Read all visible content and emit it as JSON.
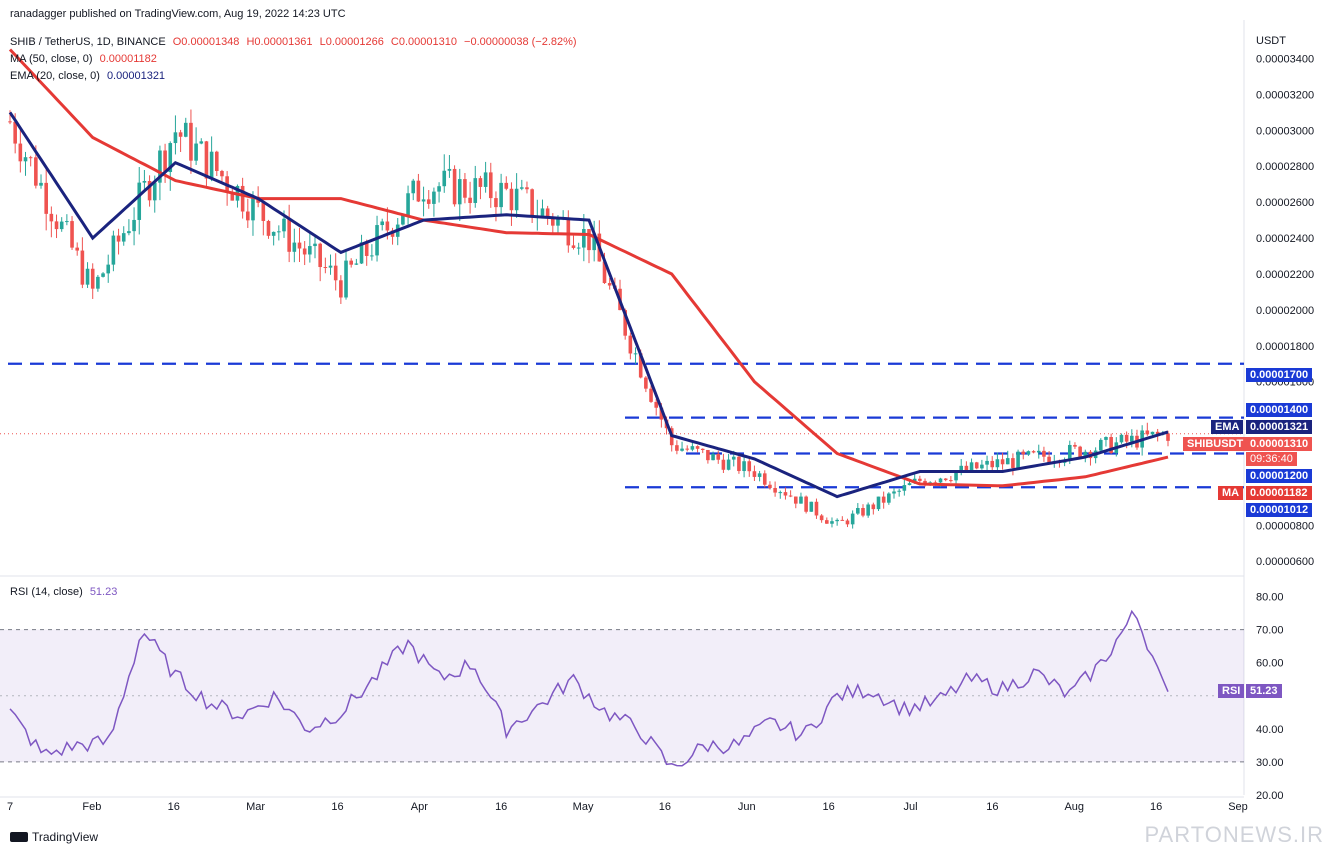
{
  "publisher": "ranadagger published on TradingView.com, Aug 19, 2022 14:23 UTC",
  "header": {
    "symbol": "SHIB / TetherUS, 1D, BINANCE",
    "open": "O0.00001348",
    "high": "H0.00001361",
    "low": "L0.00001266",
    "close": "C0.00001310",
    "change": "−0.00000038 (−2.82%)",
    "ma_label": "MA (50, close, 0)",
    "ma_value": "0.00001182",
    "ema_label": "EMA (20, close, 0)",
    "ema_value": "0.00001321"
  },
  "rsi_header": {
    "label": "RSI (14, close)",
    "value": "51.23"
  },
  "price_axis": {
    "unit": "USDT",
    "ticks": [
      "0.00003400",
      "0.00003200",
      "0.00003000",
      "0.00002800",
      "0.00002600",
      "0.00002400",
      "0.00002200",
      "0.00002000",
      "0.00001800",
      "0.00001600",
      "0.00000800",
      "0.00000600"
    ]
  },
  "rsi_axis": {
    "ticks": [
      "80.00",
      "70.00",
      "60.00",
      "40.00",
      "30.00",
      "20.00"
    ]
  },
  "time_axis": {
    "labels": [
      "7",
      "Feb",
      "16",
      "Mar",
      "16",
      "Apr",
      "16",
      "May",
      "16",
      "Jun",
      "16",
      "Jul",
      "16",
      "Aug",
      "16",
      "Sep"
    ]
  },
  "level_tags": {
    "r1700": "0.00001700",
    "r1400": "0.00001400",
    "ema_name": "EMA",
    "ema_val": "0.00001321",
    "sym_name": "SHIBUSDT",
    "last_price": "0.00001310",
    "countdown": "09:36:40",
    "s1200": "0.00001200",
    "ma_name": "MA",
    "ma_val": "0.00001182",
    "s1012": "0.00001012",
    "rsi_name": "RSI",
    "rsi_val": "51.23"
  },
  "footer": {
    "brand": "TradingView",
    "watermark": "PARTONEWS.IR"
  },
  "colors": {
    "up": "#26a69a",
    "down": "#ef5350",
    "ema": "#1a237e",
    "ma": "#e53935",
    "level": "#1a3ad6",
    "rsi": "#7e57c2"
  },
  "chart_data": {
    "type": "candlestick",
    "title": "SHIB / TetherUS, 1D, BINANCE",
    "ylabel": "USDT",
    "ylim": [
      5.4e-06,
      3.57e-05
    ],
    "horizontal_levels": [
      1.7e-05,
      1.4e-05,
      1.2e-05,
      1.012e-05
    ],
    "x": [
      "Jan 7",
      "Feb 1",
      "Feb 16",
      "Mar 1",
      "Mar 16",
      "Apr 1",
      "Apr 16",
      "May 1",
      "May 16",
      "Jun 1",
      "Jun 16",
      "Jul 1",
      "Jul 16",
      "Aug 1",
      "Aug 16"
    ],
    "series": [
      {
        "name": "EMA (20, close, 0)",
        "values": [
          3.1e-05,
          2.4e-05,
          2.82e-05,
          2.62e-05,
          2.32e-05,
          2.5e-05,
          2.53e-05,
          2.5e-05,
          1.3e-05,
          1.17e-05,
          9.6e-06,
          1.1e-05,
          1.1e-05,
          1.18e-05,
          1.32e-05
        ]
      },
      {
        "name": "MA (50, close, 0)",
        "values": [
          3.45e-05,
          2.96e-05,
          2.72e-05,
          2.62e-05,
          2.62e-05,
          2.5e-05,
          2.43e-05,
          2.42e-05,
          2.2e-05,
          1.6e-05,
          1.2e-05,
          1.03e-05,
          1.02e-05,
          1.07e-05,
          1.18e-05
        ]
      },
      {
        "name": "Close",
        "values": [
          3.05e-05,
          2.1e-05,
          3e-05,
          2.55e-05,
          2.15e-05,
          2.7e-05,
          2.65e-05,
          2.4e-05,
          1.25e-05,
          1.1e-05,
          8e-06,
          1.05e-05,
          1.15e-05,
          1.22e-05,
          1.31e-05
        ]
      }
    ],
    "rsi": {
      "name": "RSI (14, close)",
      "ylim": [
        20,
        85
      ],
      "bands": [
        30,
        70
      ],
      "values": [
        45,
        32,
        35,
        36,
        70,
        56,
        48,
        44,
        50,
        40,
        45,
        55,
        66,
        55,
        60,
        40,
        47,
        55,
        45,
        40,
        28,
        35,
        35,
        42,
        38,
        50,
        52,
        46,
        48,
        55,
        52,
        57,
        50,
        60,
        75,
        51.23
      ]
    }
  }
}
